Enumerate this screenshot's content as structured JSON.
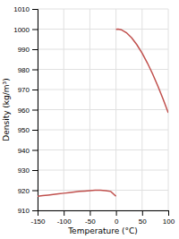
{
  "chart_data": {
    "type": "line",
    "xlabel": "Temperature (°C)",
    "ylabel": "Density (kg/m³)",
    "xlim": [
      -150,
      100
    ],
    "ylim": [
      910,
      1010
    ],
    "xticks": [
      -150,
      -100,
      -50,
      0,
      50,
      100
    ],
    "yticks": [
      910,
      920,
      930,
      940,
      950,
      960,
      970,
      980,
      990,
      1000,
      1010
    ],
    "grid": true,
    "series": [
      {
        "color": "#c0504d",
        "x": [
          -150,
          -140,
          -130,
          -120,
          -110,
          -100,
          -90,
          -80,
          -70,
          -60,
          -50,
          -40,
          -30,
          -20,
          -10,
          0
        ],
        "values": [
          917.0,
          917.3,
          917.6,
          917.9,
          918.2,
          918.5,
          918.8,
          919.1,
          919.4,
          919.6,
          919.8,
          919.95,
          920.0,
          919.8,
          919.4,
          917.0
        ]
      },
      {
        "color": "#c0504d",
        "x": [
          0,
          4,
          10,
          20,
          30,
          40,
          50,
          60,
          70,
          80,
          90,
          100
        ],
        "values": [
          999.84,
          999.97,
          999.7,
          998.2,
          995.65,
          992.2,
          988.07,
          983.2,
          977.76,
          971.8,
          965.3,
          958.4
        ]
      }
    ]
  }
}
